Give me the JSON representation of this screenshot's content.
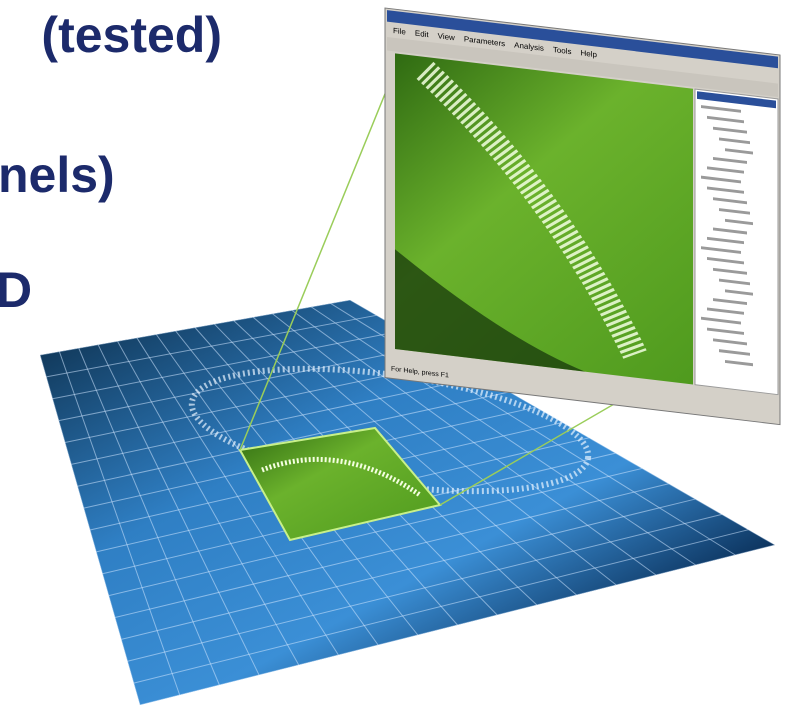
{
  "slide_text": [
    "(tested)",
    "nels)",
    "D"
  ],
  "window": {
    "menu": [
      "File",
      "Edit",
      "View",
      "Parameters",
      "Analysis",
      "Tools",
      "Help"
    ],
    "status": "For Help, press F1"
  }
}
